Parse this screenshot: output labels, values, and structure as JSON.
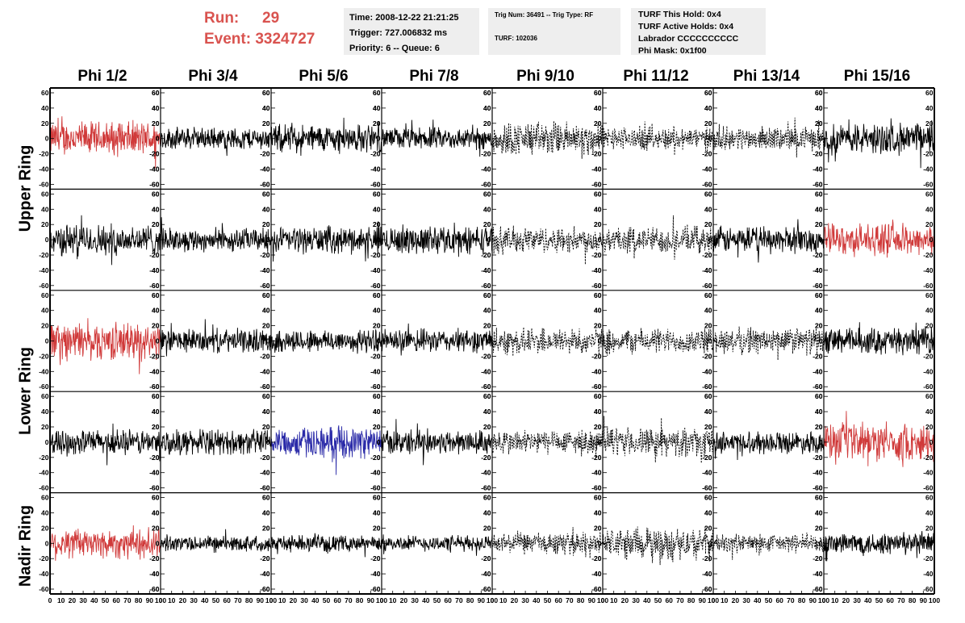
{
  "run_label": "Run:",
  "run_value": "29",
  "event_label": "Event:",
  "event_value": "3324727",
  "time_text": "Time: 2008-12-22 21:21:25",
  "trigger_text": "Trigger: 727.006832 ms",
  "priority_text": "Priority: 6 -- Queue: 6",
  "trig_num_text": "Trig Num: 36491 -- Trig Type: RF",
  "turf_text": "TURF: 102036",
  "turf_hold_text": "TURF This Hold: 0x4",
  "turf_active_text": "TURF Active Holds: 0x4",
  "labrador_text": "Labrador CCCCCCCCCC",
  "phi_mask_text": "Phi Mask: 0x1f00",
  "columns": [
    "Phi 1/2",
    "Phi 3/4",
    "Phi 5/6",
    "Phi 7/8",
    "Phi 9/10",
    "Phi 11/12",
    "Phi 13/14",
    "Phi 15/16"
  ],
  "ring_labels": [
    "Upper Ring",
    "Lower Ring",
    "Nadir Ring"
  ],
  "colors": {
    "title_red": "#d9534f",
    "trace_black": "#000000",
    "trace_red": "#d03a3a",
    "trace_blue": "#2a2aa8"
  },
  "chart_data": {
    "type": "line",
    "grid": "5 rows x 8 columns of waveform panels",
    "x_range": [
      0,
      100
    ],
    "y_range": [
      -60,
      60
    ],
    "x_ticks": [
      "0",
      "10",
      "20",
      "30",
      "40",
      "50",
      "60",
      "70",
      "80",
      "90",
      "100"
    ],
    "y_ticks": [
      "-60",
      "-40",
      "-20",
      "0",
      "20",
      "40",
      "60"
    ],
    "trace_style": [
      [
        "red",
        "black",
        "black",
        "black",
        "dashed",
        "dashed",
        "dashed",
        "black"
      ],
      [
        "black",
        "black",
        "black",
        "black",
        "dashed",
        "dashed",
        "black",
        "red"
      ],
      [
        "red",
        "black",
        "black",
        "black",
        "dashed",
        "dashed",
        "dashed",
        "black"
      ],
      [
        "black",
        "black",
        "blue",
        "black",
        "dashed",
        "dashed",
        "black",
        "red"
      ],
      [
        "red",
        "black",
        "black",
        "black",
        "dashed",
        "dashed",
        "dashed",
        "black"
      ]
    ],
    "trace_amplitude": [
      [
        22,
        14,
        18,
        14,
        22,
        15,
        15,
        20
      ],
      [
        20,
        15,
        17,
        18,
        17,
        17,
        17,
        20
      ],
      [
        24,
        15,
        15,
        15,
        17,
        16,
        17,
        17
      ],
      [
        16,
        16,
        20,
        16,
        16,
        18,
        14,
        24
      ],
      [
        20,
        10,
        10,
        10,
        14,
        20,
        12,
        15
      ]
    ]
  }
}
